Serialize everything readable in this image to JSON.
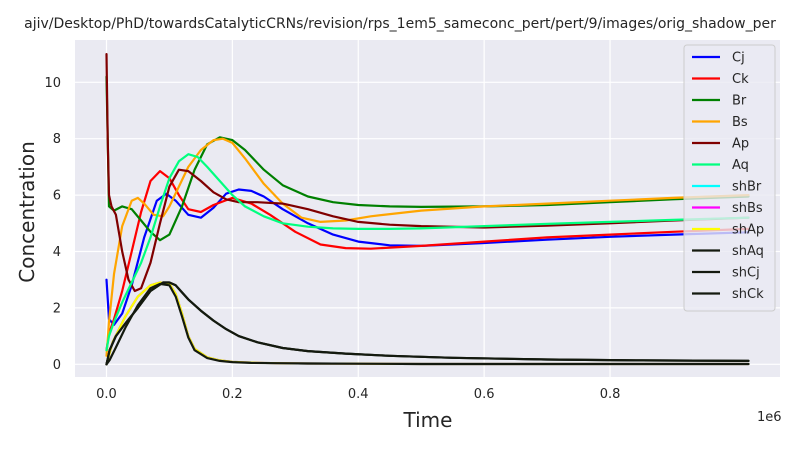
{
  "chart_data": {
    "type": "line",
    "title": "ajiv/Desktop/PhD/towardsCatalyticCRNs/revision/rps_1em5_sameconc_pert/pert/9/images/orig_shadow_per",
    "xlabel": "Time",
    "ylabel": "Concentration",
    "x_offset_label": "1e6",
    "xlim": [
      -0.05,
      1.07
    ],
    "ylim": [
      -0.45,
      11.5
    ],
    "x_ticks": [
      0.0,
      0.2,
      0.4,
      0.6,
      0.8
    ],
    "x_tick_labels": [
      "0.0",
      "0.2",
      "0.4",
      "0.6",
      "0.8"
    ],
    "y_ticks": [
      0,
      2,
      4,
      6,
      8,
      10
    ],
    "y_tick_labels": [
      "0",
      "2",
      "4",
      "6",
      "8",
      "10"
    ],
    "grid": true,
    "legend_position": "top-right",
    "series": [
      {
        "name": "Cj",
        "color": "#0000ff",
        "x": [
          0,
          0.004,
          0.012,
          0.025,
          0.04,
          0.06,
          0.08,
          0.095,
          0.11,
          0.13,
          0.15,
          0.17,
          0.19,
          0.21,
          0.23,
          0.25,
          0.28,
          0.32,
          0.36,
          0.4,
          0.45,
          0.5,
          0.6,
          0.7,
          0.8,
          0.9,
          1.02
        ],
        "y": [
          3.0,
          1.6,
          1.4,
          1.8,
          2.8,
          4.5,
          5.8,
          6.05,
          5.8,
          5.3,
          5.2,
          5.55,
          6.05,
          6.2,
          6.15,
          5.95,
          5.5,
          5.0,
          4.6,
          4.35,
          4.22,
          4.2,
          4.3,
          4.42,
          4.52,
          4.6,
          4.68
        ]
      },
      {
        "name": "Ck",
        "color": "#ff0000",
        "x": [
          0,
          0.004,
          0.012,
          0.025,
          0.04,
          0.055,
          0.07,
          0.085,
          0.1,
          0.115,
          0.13,
          0.15,
          0.17,
          0.2,
          0.23,
          0.26,
          0.3,
          0.34,
          0.38,
          0.42,
          0.5,
          0.6,
          0.7,
          0.8,
          0.9,
          1.02
        ],
        "y": [
          0.5,
          1.1,
          1.6,
          2.6,
          4.0,
          5.4,
          6.5,
          6.85,
          6.6,
          6.0,
          5.5,
          5.4,
          5.65,
          5.9,
          5.7,
          5.3,
          4.7,
          4.25,
          4.12,
          4.1,
          4.2,
          4.35,
          4.5,
          4.6,
          4.7,
          4.8
        ]
      },
      {
        "name": "Br",
        "color": "#008000",
        "x": [
          0,
          0.004,
          0.012,
          0.025,
          0.04,
          0.055,
          0.07,
          0.085,
          0.1,
          0.12,
          0.14,
          0.16,
          0.18,
          0.2,
          0.22,
          0.25,
          0.28,
          0.32,
          0.36,
          0.4,
          0.45,
          0.5,
          0.6,
          0.7,
          0.8,
          0.9,
          1.02
        ],
        "y": [
          10.2,
          5.6,
          5.45,
          5.6,
          5.5,
          5.1,
          4.7,
          4.4,
          4.6,
          5.6,
          6.9,
          7.8,
          8.05,
          7.95,
          7.6,
          6.9,
          6.35,
          5.95,
          5.75,
          5.65,
          5.6,
          5.58,
          5.6,
          5.65,
          5.75,
          5.85,
          5.95
        ]
      },
      {
        "name": "Bs",
        "color": "#ffa500",
        "x": [
          0,
          0.004,
          0.012,
          0.025,
          0.04,
          0.05,
          0.06,
          0.075,
          0.09,
          0.1,
          0.115,
          0.13,
          0.15,
          0.17,
          0.185,
          0.2,
          0.22,
          0.25,
          0.28,
          0.31,
          0.34,
          0.38,
          0.42,
          0.5,
          0.6,
          0.7,
          0.8,
          0.9,
          1.02
        ],
        "y": [
          0.3,
          1.5,
          3.2,
          4.9,
          5.8,
          5.9,
          5.7,
          5.3,
          5.25,
          5.6,
          6.3,
          7.0,
          7.6,
          7.95,
          8.0,
          7.85,
          7.3,
          6.4,
          5.7,
          5.2,
          5.05,
          5.1,
          5.25,
          5.45,
          5.6,
          5.7,
          5.8,
          5.9,
          6.0
        ]
      },
      {
        "name": "Ap",
        "color": "#800000",
        "x": [
          0,
          0.002,
          0.004,
          0.008,
          0.015,
          0.025,
          0.035,
          0.045,
          0.055,
          0.07,
          0.085,
          0.1,
          0.115,
          0.13,
          0.15,
          0.17,
          0.19,
          0.21,
          0.24,
          0.28,
          0.32,
          0.36,
          0.4,
          0.45,
          0.5,
          0.6,
          0.7,
          0.8,
          0.9,
          1.02
        ],
        "y": [
          11.0,
          8.0,
          6.0,
          5.6,
          5.3,
          4.0,
          3.0,
          2.6,
          2.7,
          3.6,
          5.0,
          6.3,
          6.9,
          6.85,
          6.5,
          6.1,
          5.85,
          5.75,
          5.75,
          5.7,
          5.5,
          5.25,
          5.05,
          4.95,
          4.9,
          4.85,
          4.92,
          5.0,
          5.1,
          5.2
        ]
      },
      {
        "name": "Aq",
        "color": "#00ff7f",
        "x": [
          0,
          0.004,
          0.012,
          0.025,
          0.04,
          0.055,
          0.07,
          0.085,
          0.1,
          0.115,
          0.13,
          0.145,
          0.16,
          0.18,
          0.2,
          0.22,
          0.25,
          0.28,
          0.32,
          0.36,
          0.4,
          0.45,
          0.5,
          0.6,
          0.7,
          0.8,
          0.9,
          1.02
        ],
        "y": [
          0.5,
          1.0,
          1.5,
          2.2,
          2.9,
          3.6,
          4.5,
          5.6,
          6.6,
          7.2,
          7.45,
          7.35,
          7.0,
          6.5,
          6.0,
          5.6,
          5.25,
          5.0,
          4.88,
          4.82,
          4.8,
          4.8,
          4.82,
          4.9,
          4.98,
          5.05,
          5.12,
          5.2
        ]
      },
      {
        "name": "shBr",
        "color": "#00ffff",
        "x": [
          0,
          0.01,
          0.03,
          0.05,
          0.07,
          0.085,
          0.1,
          0.11,
          0.12,
          0.13,
          0.14,
          0.16,
          0.18,
          0.2,
          0.23,
          0.27,
          0.32,
          0.4,
          0.5,
          0.6,
          0.8,
          1.02
        ],
        "y": [
          0.0,
          0.8,
          1.7,
          2.4,
          2.8,
          2.9,
          2.85,
          2.5,
          1.8,
          1.0,
          0.55,
          0.25,
          0.14,
          0.09,
          0.06,
          0.04,
          0.03,
          0.02,
          0.01,
          0.01,
          0.01,
          0.01
        ]
      },
      {
        "name": "shBs",
        "color": "#ff00ff",
        "x": [
          0,
          0.01,
          0.03,
          0.05,
          0.07,
          0.085,
          0.1,
          0.11,
          0.12,
          0.13,
          0.14,
          0.16,
          0.18,
          0.2,
          0.23,
          0.27,
          0.32,
          0.4,
          0.5,
          0.6,
          0.8,
          1.02
        ],
        "y": [
          0.0,
          0.8,
          1.7,
          2.4,
          2.8,
          2.9,
          2.85,
          2.5,
          1.8,
          1.0,
          0.55,
          0.25,
          0.14,
          0.09,
          0.06,
          0.04,
          0.03,
          0.02,
          0.01,
          0.01,
          0.01,
          0.01
        ]
      },
      {
        "name": "shAp",
        "color": "#ffff00",
        "x": [
          0,
          0.01,
          0.03,
          0.05,
          0.07,
          0.085,
          0.1,
          0.11,
          0.12,
          0.13,
          0.14,
          0.16,
          0.18,
          0.2,
          0.23,
          0.27,
          0.32,
          0.4,
          0.5,
          0.6,
          0.8,
          1.02
        ],
        "y": [
          0.0,
          0.8,
          1.7,
          2.4,
          2.8,
          2.9,
          2.85,
          2.5,
          1.8,
          1.0,
          0.55,
          0.25,
          0.14,
          0.09,
          0.06,
          0.04,
          0.03,
          0.02,
          0.01,
          0.01,
          0.01,
          0.01
        ]
      },
      {
        "name": "shAq",
        "color": "#141a0f",
        "x": [
          0,
          0.005,
          0.015,
          0.03,
          0.05,
          0.07,
          0.09,
          0.1,
          0.11,
          0.12,
          0.13,
          0.15,
          0.17,
          0.19,
          0.21,
          0.24,
          0.28,
          0.32,
          0.38,
          0.45,
          0.55,
          0.7,
          0.85,
          1.02
        ],
        "y": [
          0.0,
          0.5,
          1.0,
          1.45,
          2.0,
          2.6,
          2.9,
          2.9,
          2.8,
          2.55,
          2.3,
          1.9,
          1.55,
          1.25,
          1.0,
          0.78,
          0.58,
          0.47,
          0.38,
          0.3,
          0.23,
          0.17,
          0.14,
          0.12
        ]
      },
      {
        "name": "shCj",
        "color": "#141a0f",
        "x": [
          0,
          0.005,
          0.015,
          0.03,
          0.05,
          0.07,
          0.09,
          0.1,
          0.11,
          0.12,
          0.13,
          0.15,
          0.17,
          0.19,
          0.21,
          0.24,
          0.28,
          0.32,
          0.38,
          0.45,
          0.55,
          0.7,
          0.85,
          1.02
        ],
        "y": [
          0.0,
          0.5,
          1.0,
          1.45,
          2.0,
          2.6,
          2.9,
          2.9,
          2.8,
          2.55,
          2.3,
          1.9,
          1.55,
          1.25,
          1.0,
          0.78,
          0.58,
          0.47,
          0.38,
          0.3,
          0.23,
          0.17,
          0.14,
          0.12
        ]
      },
      {
        "name": "shCk",
        "color": "#141a0f",
        "x": [
          0,
          0.005,
          0.015,
          0.03,
          0.05,
          0.07,
          0.085,
          0.1,
          0.11,
          0.12,
          0.13,
          0.14,
          0.16,
          0.18,
          0.2,
          0.23,
          0.27,
          0.32,
          0.4,
          0.5,
          0.6,
          0.8,
          1.02
        ],
        "y": [
          0.0,
          0.15,
          0.6,
          1.3,
          2.1,
          2.7,
          2.85,
          2.8,
          2.4,
          1.7,
          0.95,
          0.5,
          0.22,
          0.12,
          0.08,
          0.05,
          0.04,
          0.03,
          0.02,
          0.01,
          0.01,
          0.01,
          0.01
        ]
      }
    ]
  }
}
